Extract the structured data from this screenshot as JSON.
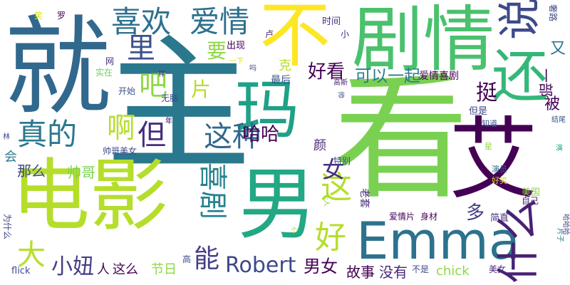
{
  "words": [
    {
      "text": "就",
      "color": "#31688e"
    },
    {
      "text": "主",
      "color": "#2a788e"
    },
    {
      "text": "看",
      "color": "#7ad151"
    },
    {
      "text": "电影",
      "color": "#b5de2b"
    },
    {
      "text": "男",
      "color": "#22a884"
    },
    {
      "text": "不",
      "color": "#fde725"
    },
    {
      "text": "剧情",
      "color": "#4ac16d"
    },
    {
      "text": "艾",
      "color": "#440154"
    },
    {
      "text": "Emma",
      "color": "#2c728e"
    },
    {
      "text": "玛",
      "color": "#1fa187"
    },
    {
      "text": "还",
      "color": "#35b779"
    },
    {
      "text": "这",
      "color": "#b5de2b"
    },
    {
      "text": "什么",
      "color": "#482173"
    },
    {
      "text": "说",
      "color": "#3e4a89"
    },
    {
      "text": "喜欢",
      "color": "#2d708e"
    },
    {
      "text": "爱情",
      "color": "#2d708e"
    },
    {
      "text": "真的",
      "color": "#2a788e"
    },
    {
      "text": "喜剧",
      "color": "#25838e"
    },
    {
      "text": "好",
      "color": "#b5de2b"
    },
    {
      "text": "吧",
      "color": "#90d743"
    },
    {
      "text": "这种",
      "color": "#31688e"
    },
    {
      "text": "里",
      "color": "#3b528b"
    },
    {
      "text": "但",
      "color": "#472d7b"
    },
    {
      "text": "啊",
      "color": "#b5de2b"
    },
    {
      "text": "大",
      "color": "#b5de2b"
    },
    {
      "text": "能",
      "color": "#433e85"
    },
    {
      "text": "Robert",
      "color": "#3e4989"
    },
    {
      "text": "小妞",
      "color": "#433e85"
    },
    {
      "text": "男女",
      "color": "#440154"
    },
    {
      "text": "哈哈",
      "color": "#440154"
    },
    {
      "text": "好看",
      "color": "#440154"
    },
    {
      "text": "可以一起",
      "color": "#2a788e"
    },
    {
      "text": "女",
      "color": "#46327e"
    },
    {
      "text": "挺",
      "color": "#440154"
    },
    {
      "text": "片",
      "color": "#b5de2b"
    },
    {
      "text": "要",
      "color": "#90d743"
    },
    {
      "text": "那么",
      "color": "#3e4a89"
    },
    {
      "text": "帅哥",
      "color": "#7ad151"
    },
    {
      "text": "故事",
      "color": "#440154"
    },
    {
      "text": "没有",
      "color": "#482878"
    },
    {
      "text": "chick",
      "color": "#90d743"
    },
    {
      "text": "这么",
      "color": "#440154"
    },
    {
      "text": "节日",
      "color": "#90d743"
    },
    {
      "text": "人",
      "color": "#440154"
    },
    {
      "text": "多",
      "color": "#433e85"
    },
    {
      "text": "被",
      "color": "#440154"
    },
    {
      "text": "又",
      "color": "#2c728e"
    },
    {
      "text": "一部",
      "color": "#440154"
    },
    {
      "text": "颜",
      "color": "#482878"
    },
    {
      "text": "克",
      "color": "#b5de2b"
    },
    {
      "text": "卢",
      "color": "#482878"
    },
    {
      "text": "会",
      "color": "#2a788e"
    },
    {
      "text": "美国",
      "color": "#90d743"
    },
    {
      "text": "简直",
      "color": "#46327e"
    },
    {
      "text": "美女",
      "color": "#482878"
    },
    {
      "text": "不是",
      "color": "#3e4a89"
    },
    {
      "text": "爱情喜剧",
      "color": "#440154"
    },
    {
      "text": "最后",
      "color": "#3b528b"
    },
    {
      "text": "但是",
      "color": "#414487"
    },
    {
      "text": "出现",
      "color": "#440154"
    },
    {
      "text": "时间",
      "color": "#472d7b"
    },
    {
      "text": "小",
      "color": "#482878"
    },
    {
      "text": "罗",
      "color": "#440154"
    },
    {
      "text": "网",
      "color": "#46327e"
    },
    {
      "text": "实在",
      "color": "#6ece58"
    },
    {
      "text": "开始",
      "color": "#3b528b"
    },
    {
      "text": "帅哥美女",
      "color": "#3e4a89"
    },
    {
      "text": "无脑",
      "color": "#3e4989"
    },
    {
      "text": "爱情片",
      "color": "#440154"
    },
    {
      "text": "身材",
      "color": "#440154"
    },
    {
      "text": "自己",
      "color": "#482878"
    },
    {
      "text": "特别",
      "color": "#3e4a89"
    },
    {
      "text": "老套",
      "color": "#482878"
    },
    {
      "text": "演员",
      "color": "#31688e"
    },
    {
      "text": "知道",
      "color": "#3b528b"
    },
    {
      "text": "结尾",
      "color": "#3b528b"
    },
    {
      "text": "高斯",
      "color": "#482878"
    },
    {
      "text": "奢路",
      "color": "#3e4a89"
    },
    {
      "text": "一样",
      "color": "#46327e"
    },
    {
      "text": "吗",
      "color": "#3e4989"
    },
    {
      "text": "笑",
      "color": "#d8e219"
    },
    {
      "text": "个人",
      "color": "#90d743"
    },
    {
      "text": "个",
      "color": "#b5de2b"
    },
    {
      "text": "好笑",
      "color": "#d8e219"
    },
    {
      "text": "星",
      "color": "#90d743"
    },
    {
      "text": "演",
      "color": "#1fa187"
    },
    {
      "text": "年",
      "color": "#440154"
    },
    {
      "text": "林",
      "color": "#3e4a89"
    },
    {
      "text": "为什么",
      "color": "#3e4a89"
    },
    {
      "text": "高",
      "color": "#3e4989"
    },
    {
      "text": "flick",
      "color": "#3e4a89"
    },
    {
      "text": "一下",
      "color": "#d8e219"
    },
    {
      "text": "帅",
      "color": "#3b528b"
    },
    {
      "text": "片子",
      "color": "#2a788e"
    },
    {
      "text": "哈哈哈",
      "color": "#3e4a89"
    }
  ]
}
